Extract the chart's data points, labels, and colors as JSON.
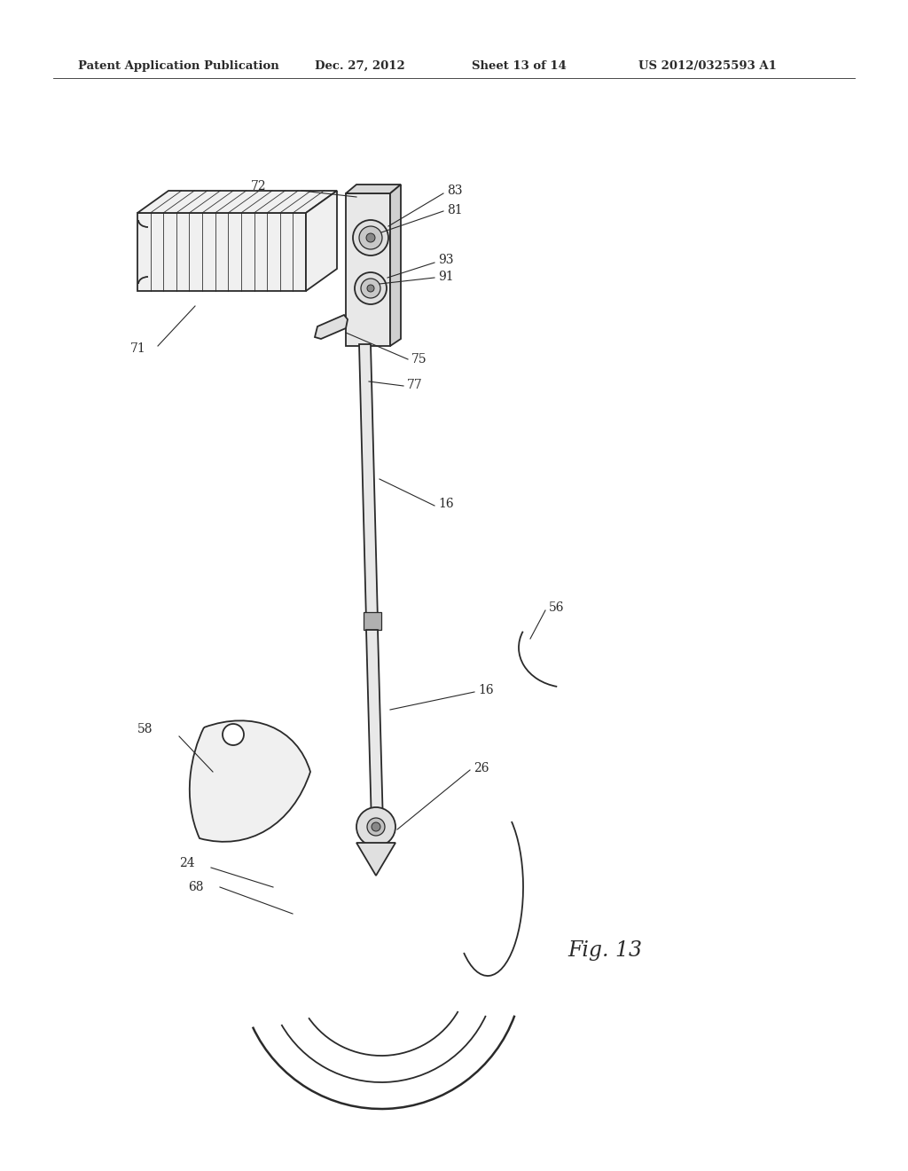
{
  "background_color": "#ffffff",
  "line_color": "#2a2a2a",
  "header_text": "Patent Application Publication",
  "header_date": "Dec. 27, 2012",
  "header_sheet": "Sheet 13 of 14",
  "header_patent": "US 2012/0325593 A1",
  "figure_label": "Fig. 13",
  "label_fontsize": 10,
  "header_fontsize": 9.5,
  "fig_label_fontsize": 17
}
